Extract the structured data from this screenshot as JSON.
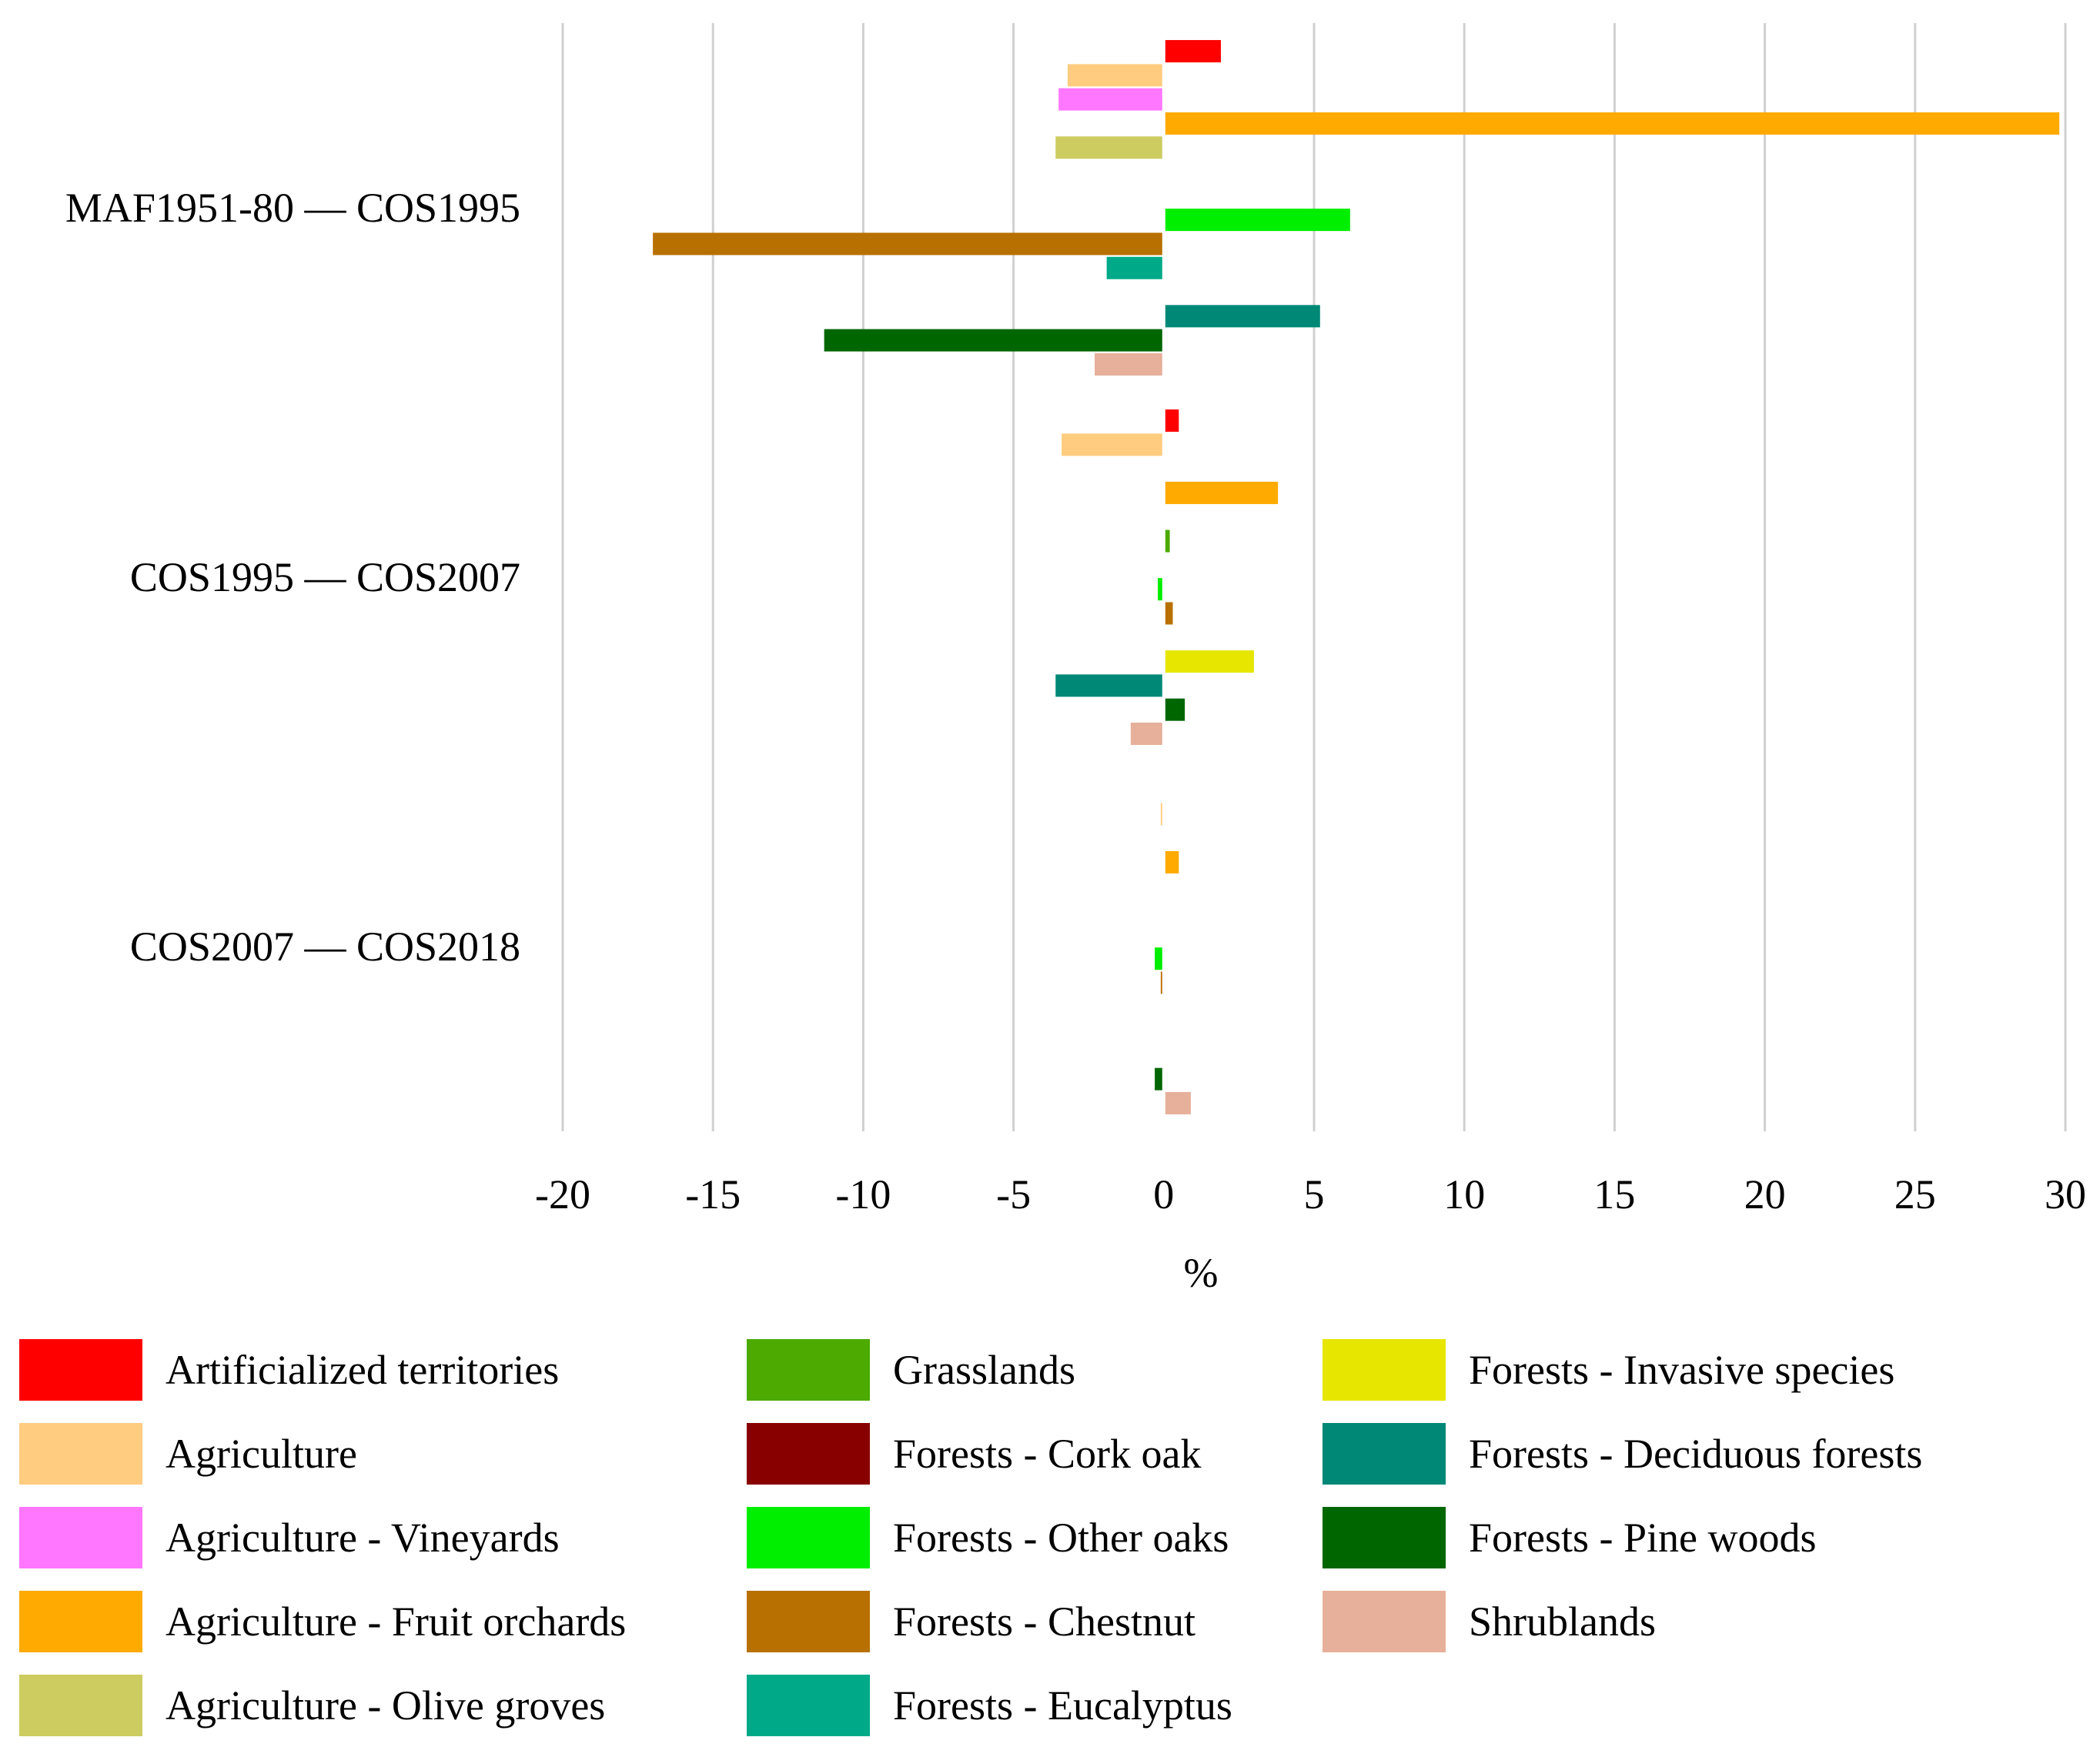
{
  "chart_data": {
    "type": "bar",
    "orientation": "horizontal",
    "title": "",
    "xlabel": "%",
    "ylabel": "",
    "xlim": [
      -20,
      30
    ],
    "xticks": [
      -20,
      -15,
      -10,
      -5,
      0,
      5,
      10,
      15,
      20,
      25,
      30
    ],
    "grid": true,
    "legend_position": "bottom",
    "categories": [
      "MAF1951-80 — COS1995",
      "COS1995 — COS2007",
      "COS2007 — COS2018"
    ],
    "series": [
      {
        "name": "Artificialized territories",
        "color": "#ff0000",
        "values": [
          1.9,
          0.5,
          0.0
        ]
      },
      {
        "name": "Agriculture",
        "color": "#ffcc80",
        "values": [
          -3.2,
          -3.4,
          -0.1
        ]
      },
      {
        "name": "Agriculture - Vineyards",
        "color": "#ff77ff",
        "values": [
          -3.5,
          0.0,
          0.0
        ]
      },
      {
        "name": "Agriculture - Fruit orchards",
        "color": "#ffaa00",
        "values": [
          29.8,
          3.8,
          0.5
        ]
      },
      {
        "name": "Agriculture - Olive groves",
        "color": "#cccc60",
        "values": [
          -3.6,
          0.0,
          0.0
        ]
      },
      {
        "name": "Grasslands",
        "color": "#4caa00",
        "values": [
          0.0,
          0.2,
          0.0
        ]
      },
      {
        "name": "Forests - Cork oak",
        "color": "#880000",
        "values": [
          0.0,
          0.0,
          0.0
        ]
      },
      {
        "name": "Forests - Other oaks",
        "color": "#00ee00",
        "values": [
          6.2,
          -0.2,
          -0.3
        ]
      },
      {
        "name": "Forests - Chestnut",
        "color": "#b87000",
        "values": [
          -17.0,
          0.3,
          -0.1
        ]
      },
      {
        "name": "Forests - Eucalyptus",
        "color": "#00aa88",
        "values": [
          -1.9,
          0.0,
          0.0
        ]
      },
      {
        "name": "Forests - Invasive species",
        "color": "#e6e600",
        "values": [
          0.0,
          3.0,
          0.0
        ]
      },
      {
        "name": "Forests - Deciduous forests",
        "color": "#008877",
        "values": [
          5.2,
          -3.6,
          0.0
        ]
      },
      {
        "name": "Forests - Pine woods",
        "color": "#006600",
        "values": [
          -11.3,
          0.7,
          -0.3
        ]
      },
      {
        "name": "Shrublands",
        "color": "#e6b09a",
        "values": [
          -2.3,
          -1.1,
          0.9
        ]
      }
    ]
  }
}
